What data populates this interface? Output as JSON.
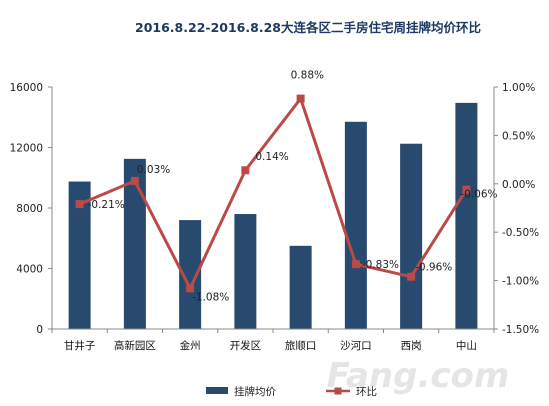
{
  "chart_data": {
    "type": "bar",
    "title": "2016.8.22-2016.8.28大连各区二手房住宅周挂牌均价环比",
    "categories": [
      "甘井子",
      "高新园区",
      "金州",
      "开发区",
      "旅顺口",
      "沙河口",
      "西岗",
      "中山"
    ],
    "series": [
      {
        "name": "挂牌均价",
        "type": "bar",
        "axis": "left",
        "color": "#284a6e",
        "values": [
          9750,
          11250,
          7200,
          7600,
          5500,
          13700,
          12250,
          14950
        ]
      },
      {
        "name": "环比",
        "type": "line",
        "axis": "right",
        "color": "#b94a48",
        "values": [
          -0.21,
          0.03,
          -1.08,
          0.14,
          0.88,
          -0.83,
          -0.96,
          -0.06
        ],
        "labels": [
          "-0.21%",
          "0.03%",
          "-1.08%",
          "0.14%",
          "0.88%",
          "-0.83%",
          "-0.96%",
          "-0.06%"
        ]
      }
    ],
    "y_left": {
      "min": 0,
      "max": 16000,
      "ticks": [
        "0",
        "4000",
        "8000",
        "12000",
        "16000"
      ]
    },
    "y_right": {
      "min": -1.5,
      "max": 1.0,
      "ticks": [
        "-1.50%",
        "-1.00%",
        "-0.50%",
        "0.00%",
        "0.50%",
        "1.00%"
      ]
    },
    "grid": false,
    "legend_position": "bottom"
  },
  "watermark": "Fang.com 房天下"
}
